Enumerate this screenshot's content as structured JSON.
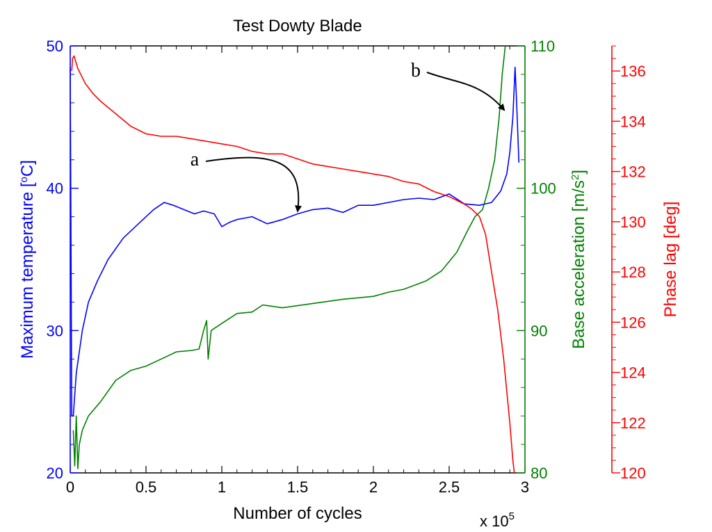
{
  "chart_data": {
    "type": "line",
    "title": "Test Dowty Blade",
    "xlabel": "Number of cycles",
    "x_multiplier": "x 10",
    "x_multiplier_exp": "5",
    "xlim": [
      0,
      3
    ],
    "x_ticks": [
      "0",
      "0.5",
      "1",
      "1.5",
      "2",
      "2.5",
      "3"
    ],
    "axes": [
      {
        "id": "temperature",
        "side": "left",
        "color": "#0000ff",
        "label_parts": [
          "Maximum temperature [",
          "o",
          "C]"
        ],
        "ylim": [
          20,
          50
        ],
        "ticks": [
          "20",
          "30",
          "40",
          "50"
        ]
      },
      {
        "id": "acceleration",
        "side": "right",
        "color": "#008000",
        "label_parts": [
          "Base acceleration [m/s",
          "2",
          "]"
        ],
        "ylim": [
          80,
          110
        ],
        "ticks": [
          "80",
          "90",
          "100",
          "110"
        ]
      },
      {
        "id": "phase",
        "side": "far-right",
        "color": "#ff0000",
        "label_parts": [
          "Phase lag [deg]"
        ],
        "ylim": [
          120,
          137
        ],
        "ticks": [
          "120",
          "122",
          "124",
          "126",
          "128",
          "130",
          "132",
          "134",
          "136"
        ]
      }
    ],
    "series": [
      {
        "axis": "temperature",
        "color": "#0000ff",
        "x": [
          0.0,
          0.01,
          0.02,
          0.04,
          0.08,
          0.12,
          0.18,
          0.25,
          0.35,
          0.45,
          0.55,
          0.62,
          0.68,
          0.75,
          0.82,
          0.88,
          0.95,
          1.0,
          1.05,
          1.1,
          1.2,
          1.3,
          1.4,
          1.5,
          1.6,
          1.7,
          1.8,
          1.9,
          2.0,
          2.1,
          2.2,
          2.3,
          2.4,
          2.5,
          2.6,
          2.7,
          2.78,
          2.84,
          2.88,
          2.9,
          2.92,
          2.935,
          2.945,
          2.96
        ],
        "y": [
          48.5,
          24.0,
          24.0,
          27.0,
          30.0,
          32.0,
          33.5,
          35.0,
          36.5,
          37.5,
          38.5,
          39.0,
          38.8,
          38.5,
          38.2,
          38.4,
          38.2,
          37.3,
          37.6,
          37.8,
          38.0,
          37.5,
          37.8,
          38.2,
          38.5,
          38.6,
          38.3,
          38.8,
          38.8,
          39.0,
          39.2,
          39.3,
          39.2,
          39.6,
          38.9,
          38.8,
          39.0,
          39.8,
          41.0,
          42.5,
          45.0,
          48.5,
          46.0,
          41.8
        ]
      },
      {
        "axis": "acceleration",
        "color": "#008000",
        "x": [
          0.02,
          0.03,
          0.04,
          0.05,
          0.06,
          0.08,
          0.12,
          0.2,
          0.3,
          0.4,
          0.5,
          0.6,
          0.7,
          0.8,
          0.85,
          0.88,
          0.9,
          0.91,
          0.93,
          1.0,
          1.1,
          1.2,
          1.27,
          1.4,
          1.6,
          1.8,
          2.0,
          2.1,
          2.2,
          2.35,
          2.45,
          2.55,
          2.62,
          2.67,
          2.72,
          2.76,
          2.8,
          2.83,
          2.85,
          2.87
        ],
        "y": [
          83.0,
          80.5,
          84.0,
          80.3,
          82.0,
          83.0,
          84.0,
          85.0,
          86.5,
          87.2,
          87.5,
          88.0,
          88.5,
          88.6,
          88.7,
          90.0,
          90.7,
          88.0,
          90.0,
          90.5,
          91.2,
          91.3,
          91.8,
          91.6,
          91.9,
          92.2,
          92.4,
          92.7,
          92.9,
          93.5,
          94.2,
          95.5,
          97.0,
          98.0,
          98.5,
          100.0,
          102.0,
          105.0,
          108.0,
          110.0
        ]
      },
      {
        "axis": "phase",
        "color": "#ff0000",
        "x": [
          0.01,
          0.015,
          0.025,
          0.05,
          0.1,
          0.15,
          0.2,
          0.3,
          0.4,
          0.5,
          0.6,
          0.7,
          0.8,
          0.9,
          1.0,
          1.1,
          1.2,
          1.3,
          1.4,
          1.5,
          1.6,
          1.7,
          1.8,
          1.9,
          2.0,
          2.1,
          2.2,
          2.3,
          2.4,
          2.5,
          2.6,
          2.65,
          2.7,
          2.74,
          2.78,
          2.82,
          2.86,
          2.9,
          2.92,
          2.93
        ],
        "y": [
          136.0,
          136.5,
          136.6,
          136.1,
          135.5,
          135.1,
          134.8,
          134.3,
          133.8,
          133.5,
          133.4,
          133.4,
          133.3,
          133.2,
          133.1,
          133.0,
          132.8,
          132.7,
          132.7,
          132.5,
          132.3,
          132.2,
          132.1,
          132.0,
          131.9,
          131.8,
          131.6,
          131.5,
          131.2,
          131.0,
          130.7,
          130.5,
          130.2,
          129.5,
          128.0,
          126.5,
          124.5,
          122.0,
          120.5,
          119.8
        ]
      }
    ],
    "annotations": [
      {
        "label": "a",
        "x": 1.5,
        "y": 38.0,
        "axis": "temperature"
      },
      {
        "label": "b",
        "x": 2.89,
        "y": 45.5,
        "axis": "temperature"
      }
    ]
  }
}
